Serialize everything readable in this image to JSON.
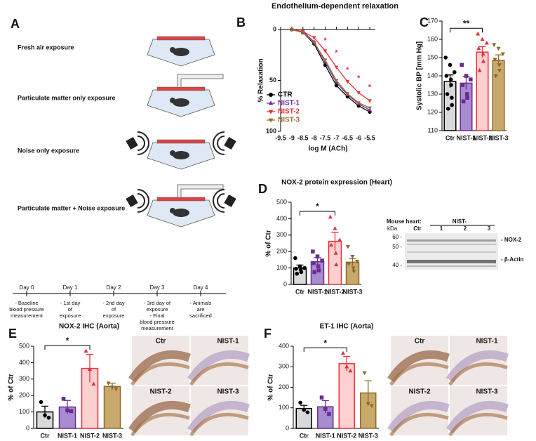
{
  "letters": [
    "A",
    "B",
    "C",
    "D",
    "E",
    "F"
  ],
  "panel_a": {
    "exposures": [
      "Fresh air exposure",
      "Particulate matter only exposure",
      "Noise only exposure",
      "Particulate matter + Noise exposure"
    ],
    "days": [
      {
        "day": "Day 0",
        "lines": [
          "- Baseline",
          "blood pressure",
          "measurement"
        ]
      },
      {
        "day": "Day 1",
        "lines": [
          "- 1st day",
          "of",
          "exposure"
        ]
      },
      {
        "day": "Day 2",
        "lines": [
          "- 2nd day",
          "of",
          "exposure"
        ]
      },
      {
        "day": "Day 3",
        "lines": [
          "- 3rd day of",
          "exposure",
          "- Final",
          "blood pressure",
          "measurement"
        ]
      },
      {
        "day": "Day 4",
        "lines": [
          "- Animals",
          "are",
          "sacrificed"
        ]
      }
    ]
  },
  "blot": {
    "title": "Mouse heart:",
    "group": "NIST-",
    "unit": "kDa",
    "lanes": [
      "Ctr",
      "1",
      "2",
      "3"
    ],
    "markers": [
      "60 -",
      "50 -",
      "40 -"
    ],
    "bands": [
      "- NOX-2",
      "- β-Actin"
    ]
  },
  "ihc": [
    {
      "labels": [
        "Ctr",
        "NIST-1",
        "NIST-2",
        "NIST-3"
      ]
    },
    {
      "labels": [
        "Ctr",
        "NIST-1",
        "NIST-2",
        "NIST-3"
      ]
    }
  ],
  "chart_data": [
    {
      "type": "line",
      "title": "Endothelium-dependent relaxation",
      "xlabel": "log M (ACh)",
      "ylabel": "% Relaxation",
      "x": [
        -9,
        -8.5,
        -8,
        -7.5,
        -7,
        -6.5,
        -6,
        -5.5
      ],
      "xlim": [
        -9.5,
        -5.25
      ],
      "xticks": [
        -9.5,
        -9,
        -8.5,
        -8,
        -7.5,
        -7,
        -6.5,
        -6,
        -5.5
      ],
      "ylim": [
        100,
        0
      ],
      "yticks": [
        0,
        50,
        100
      ],
      "legend": "lower left",
      "series": [
        {
          "name": "CTR",
          "color": "#000000",
          "marker": "circle",
          "values": [
            0,
            3,
            14,
            35,
            55,
            66,
            75,
            81
          ]
        },
        {
          "name": "NIST-1",
          "color": "#7030a0",
          "marker": "triangle",
          "values": [
            0,
            2,
            12,
            32,
            52,
            64,
            73,
            79
          ]
        },
        {
          "name": "NIST-2",
          "color": "#e8303a",
          "marker": "triangle-down",
          "values": [
            0,
            2,
            8,
            21,
            37,
            51,
            62,
            70
          ]
        },
        {
          "name": "NIST-3",
          "color": "#9c6b30",
          "marker": "triangle-down",
          "values": [
            0,
            3,
            13,
            30,
            50,
            63,
            72,
            77
          ]
        }
      ],
      "annotations": [
        {
          "text": "*",
          "x": -7.5,
          "y": 11,
          "color": "#e8303a"
        },
        {
          "text": "*",
          "x": -7,
          "y": 23,
          "color": "#e8303a"
        },
        {
          "text": "*",
          "x": -6.5,
          "y": 40,
          "color": "#e8303a"
        },
        {
          "text": "*",
          "x": -6,
          "y": 48,
          "color": "#e8303a"
        },
        {
          "text": "*",
          "x": -5.5,
          "y": 57,
          "color": "#e8303a"
        }
      ]
    },
    {
      "type": "bar",
      "ylabel": "Systolic BP [mm Hg]",
      "categories": [
        "Ctr",
        "NIST-1",
        "NIST-2",
        "NIST-3"
      ],
      "values": [
        137,
        136,
        153,
        148.5
      ],
      "errors": [
        3.5,
        3.5,
        3,
        3
      ],
      "colors": [
        "#d9d9d9",
        "#a98bd0",
        "#fbd0d0",
        "#c9a86c"
      ],
      "edge_colors": [
        "#000000",
        "#6a2c91",
        "#e8303a",
        "#8b6a2b"
      ],
      "markers": [
        "circle",
        "square",
        "triangle",
        "triangle-down"
      ],
      "points": [
        [
          150,
          146,
          142,
          140,
          138,
          135,
          130,
          128,
          124,
          122
        ],
        [
          146,
          140,
          138,
          135,
          130,
          128,
          126
        ],
        [
          163,
          160,
          158,
          155,
          152,
          148,
          143
        ],
        [
          157,
          155,
          152,
          149,
          146,
          143,
          140
        ]
      ],
      "ylim": [
        110,
        170
      ],
      "yticks": [
        110,
        120,
        130,
        140,
        150,
        160,
        170
      ],
      "brackets": [
        {
          "from": 0,
          "to": 2,
          "text": "**"
        }
      ]
    },
    {
      "type": "bar",
      "title": "NOX-2 protein expression (Heart)",
      "ylabel": "% of Ctr",
      "categories": [
        "Ctr",
        "NIST-1",
        "NIST-2",
        "NIST-3"
      ],
      "values": [
        100,
        138,
        262,
        135
      ],
      "errors": [
        18,
        25,
        55,
        22
      ],
      "colors": [
        "#d9d9d9",
        "#a98bd0",
        "#fbd0d0",
        "#c9a86c"
      ],
      "edge_colors": [
        "#000000",
        "#6a2c91",
        "#e8303a",
        "#8b6a2b"
      ],
      "markers": [
        "circle",
        "square",
        "triangle",
        "triangle-down"
      ],
      "points": [
        [
          160,
          110,
          100,
          95,
          90,
          75,
          65
        ],
        [
          200,
          170,
          145,
          130,
          110,
          85,
          75
        ],
        [
          410,
          340,
          270,
          240,
          190,
          120
        ],
        [
          230,
          170,
          140,
          125,
          100,
          80
        ]
      ],
      "ylim": [
        0,
        500
      ],
      "yticks": [
        0,
        100,
        200,
        300,
        400,
        500
      ],
      "brackets": [
        {
          "from": 0,
          "to": 2,
          "text": "*"
        }
      ]
    },
    {
      "type": "bar",
      "title": "NOX-2 IHC (Aorta)",
      "ylabel": "% of Ctr",
      "categories": [
        "Ctr",
        "NIST-1",
        "NIST-2",
        "NIST-3"
      ],
      "values": [
        100,
        130,
        365,
        255
      ],
      "errors": [
        35,
        40,
        85,
        20
      ],
      "colors": [
        "#d9d9d9",
        "#a98bd0",
        "#fbd0d0",
        "#c9a86c"
      ],
      "edge_colors": [
        "#000000",
        "#6a2c91",
        "#e8303a",
        "#8b6a2b"
      ],
      "markers": [
        "circle",
        "square",
        "triangle",
        "triangle-down"
      ],
      "points": [
        [
          160,
          80,
          65
        ],
        [
          180,
          110,
          105
        ],
        [
          470,
          360,
          270
        ],
        [
          275,
          250,
          240
        ]
      ],
      "ylim": [
        0,
        500
      ],
      "yticks": [
        0,
        100,
        200,
        300,
        400,
        500
      ],
      "brackets": [
        {
          "from": 0,
          "to": 2,
          "text": "*"
        }
      ]
    },
    {
      "type": "bar",
      "title": "ET-1 IHC (Aorta)",
      "ylabel": "% of Ctr",
      "categories": [
        "Ctr",
        "NIST-1",
        "NIST-2",
        "NIST-3"
      ],
      "values": [
        97,
        105,
        315,
        172
      ],
      "errors": [
        15,
        30,
        35,
        60
      ],
      "colors": [
        "#d9d9d9",
        "#a98bd0",
        "#fbd0d0",
        "#c9a86c"
      ],
      "edge_colors": [
        "#000000",
        "#6a2c91",
        "#e8303a",
        "#8b6a2b"
      ],
      "markers": [
        "circle",
        "square",
        "triangle",
        "triangle-down"
      ],
      "points": [
        [
          125,
          90,
          78
        ],
        [
          150,
          95,
          70
        ],
        [
          365,
          300,
          280
        ],
        [
          270,
          120,
          110
        ]
      ],
      "ylim": [
        0,
        400
      ],
      "yticks": [
        0,
        100,
        200,
        300,
        400
      ],
      "brackets": [
        {
          "from": 0,
          "to": 2,
          "text": "*"
        }
      ]
    }
  ]
}
